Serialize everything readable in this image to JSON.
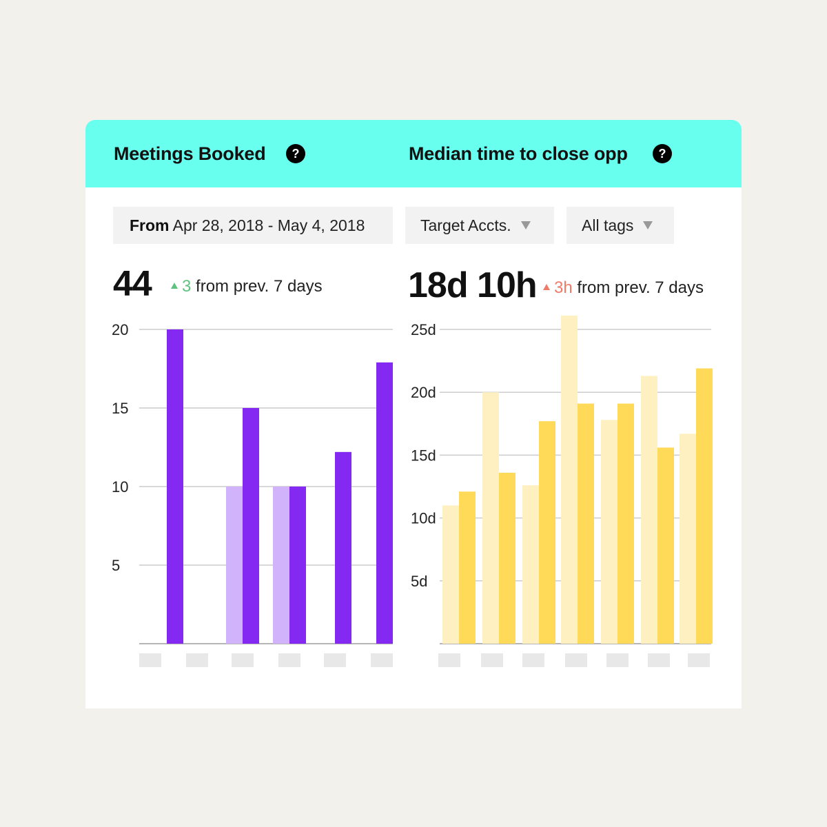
{
  "header": {
    "left_title": "Meetings Booked",
    "right_title": "Median time to close opp",
    "help_glyph": "?"
  },
  "filters": {
    "date_prefix": "From",
    "date_range": "Apr 28, 2018 - May 4, 2018",
    "accounts": "Target Accts.",
    "tags": "All tags"
  },
  "meetings": {
    "value": "44",
    "delta": "3",
    "delta_text": "from prev. 7 days",
    "delta_color": "#5fc27e"
  },
  "close_time": {
    "value": "18d 10h",
    "delta": "3h",
    "delta_text": "from prev. 7 days",
    "delta_color": "#f07a6a"
  },
  "chart_data": [
    {
      "type": "bar",
      "categories": [
        "",
        "",
        "",
        "",
        "",
        ""
      ],
      "series": [
        {
          "values": [
            0,
            0,
            10,
            10,
            0,
            0
          ],
          "color": "#d0b3fb"
        },
        {
          "values": [
            20,
            0,
            15,
            10,
            12.2,
            17.9
          ],
          "color": "#8329f2"
        }
      ],
      "yticks": [
        "20",
        "15",
        "10",
        "5"
      ],
      "ylim": [
        0,
        20
      ],
      "grid": true
    },
    {
      "type": "bar",
      "categories": [
        "",
        "",
        "",
        "",
        "",
        "",
        ""
      ],
      "series": [
        {
          "values": [
            11,
            20,
            12.6,
            26.1,
            17.8,
            21.3,
            16.7
          ],
          "color": "#fff0c2"
        },
        {
          "values": [
            12.1,
            13.6,
            17.7,
            19.1,
            19.1,
            15.6,
            21.9
          ],
          "color": "#ffda58"
        }
      ],
      "yticks": [
        "25d",
        "20d",
        "15d",
        "10d",
        "5d"
      ],
      "ylim": [
        0,
        25
      ],
      "grid": true
    }
  ]
}
